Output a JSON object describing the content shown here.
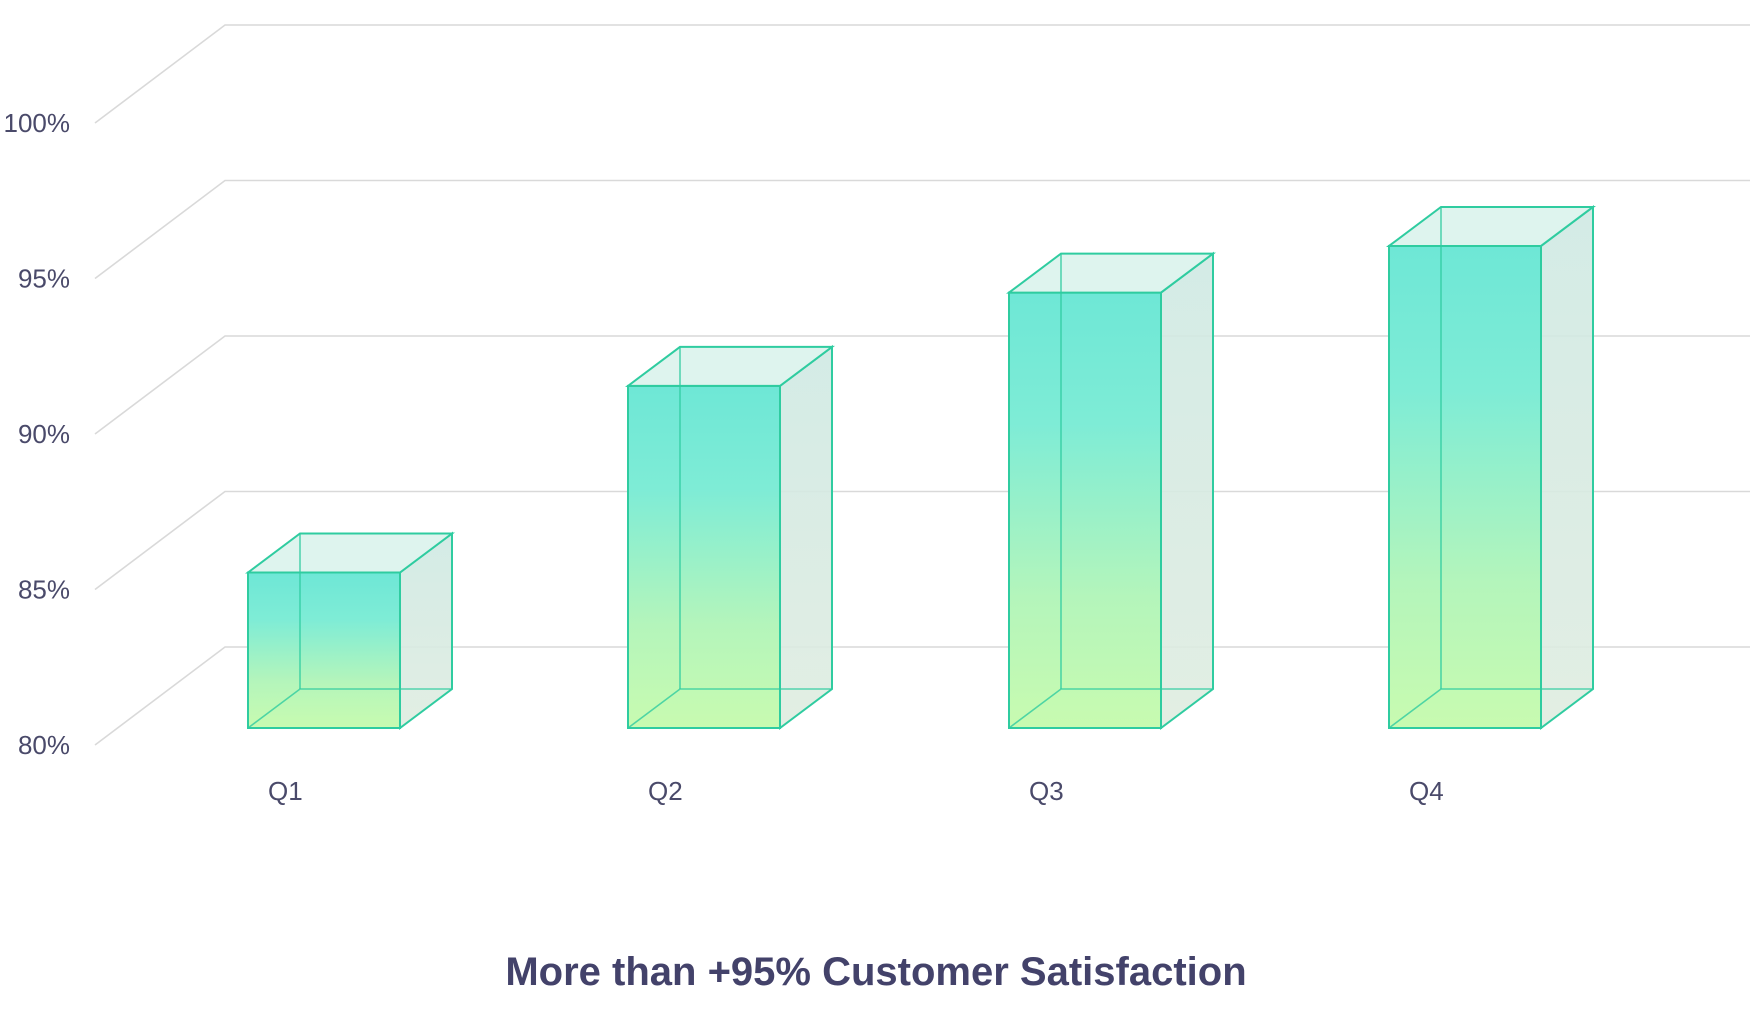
{
  "chart_data": {
    "type": "bar",
    "title": "More than +95% Customer Satisfaction",
    "xlabel": "",
    "ylabel": "",
    "categories": [
      "Q1",
      "Q2",
      "Q3",
      "Q4"
    ],
    "values": [
      85,
      91,
      94,
      95.5
    ],
    "ylim": [
      80,
      100
    ],
    "yticks": [
      80,
      85,
      90,
      95,
      100
    ],
    "ytick_labels": [
      "80%",
      "85%",
      "90%",
      "95%",
      "100%"
    ],
    "grid": true,
    "legend": "none",
    "style": "3d-box",
    "colors": {
      "bar_top": "#6ee7d6",
      "bar_bottom": "#c8fbb0",
      "bar_edge": "#2fcca0",
      "side": "#d9ece6",
      "grid": "#d9d9d9",
      "text": "#4a4a6a",
      "title": "#43426a"
    }
  }
}
